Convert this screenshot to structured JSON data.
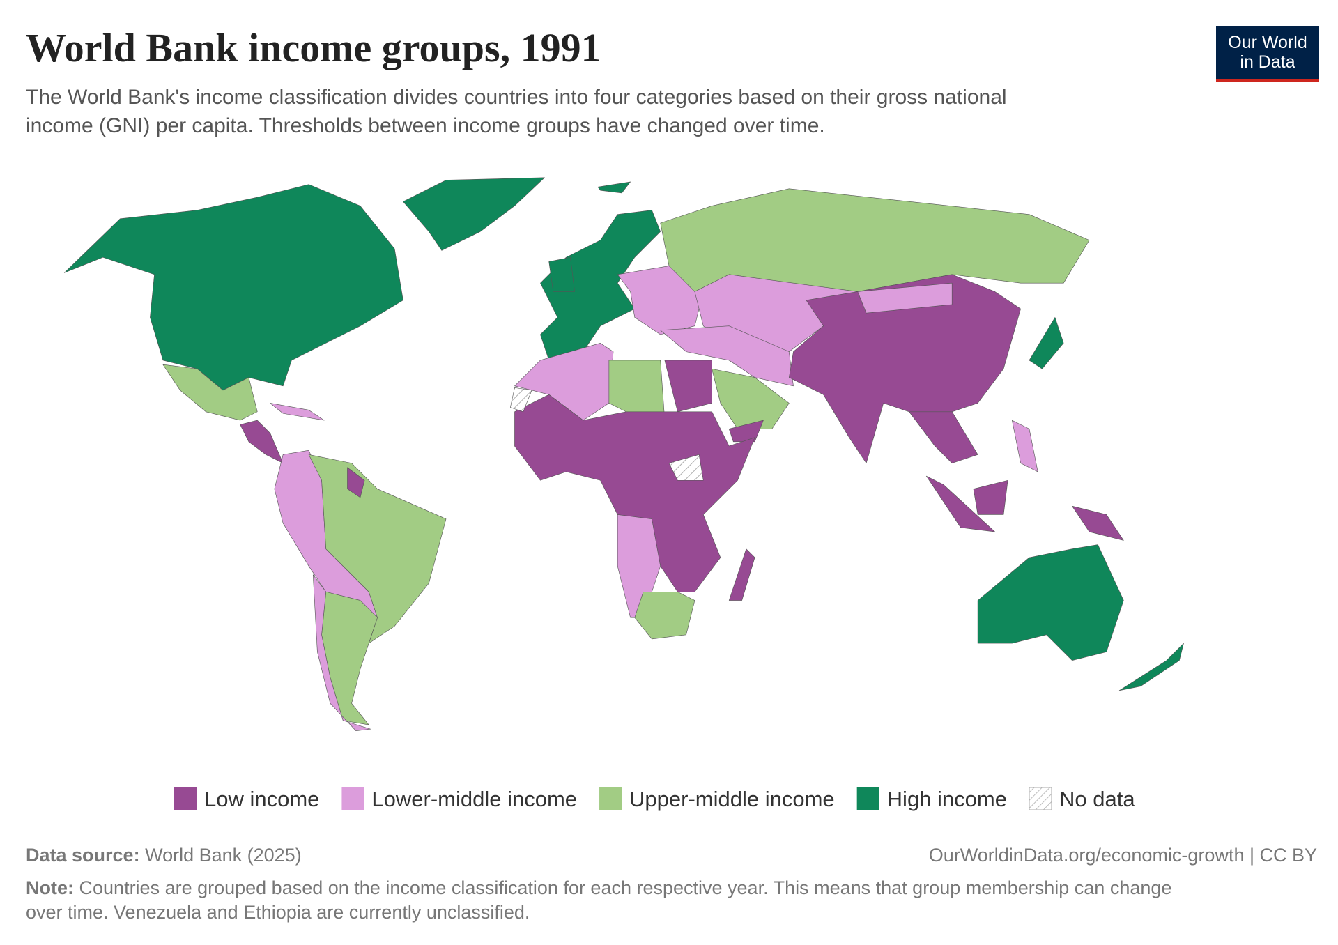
{
  "header": {
    "title": "World Bank income groups, 1991",
    "subtitle": [
      "The World Bank's income classification divides countries into four categories based on their gross national",
      "income (GNI) per capita. Thresholds between income groups have changed over time."
    ],
    "logo": [
      "Our World",
      "in Data"
    ]
  },
  "legend": [
    {
      "name": "Low income",
      "color": "#974a93"
    },
    {
      "name": "Lower-middle income",
      "color": "#dc9ddc"
    },
    {
      "name": "Upper-middle income",
      "color": "#a2cc84"
    },
    {
      "name": "High income",
      "color": "#0f875a"
    },
    {
      "name": "No data",
      "color": "#ffffff",
      "pattern": "hatch"
    }
  ],
  "footer": {
    "source_label": "Data source:",
    "source": "World Bank (2025)",
    "url": "OurWorldinData.org/economic-growth | CC BY",
    "note_label": "Note:",
    "note": [
      "Countries are grouped based on the income classification for each respective year. This means that group membership can change",
      "over time. Venezuela and Ethiopia are currently unclassified."
    ]
  }
}
